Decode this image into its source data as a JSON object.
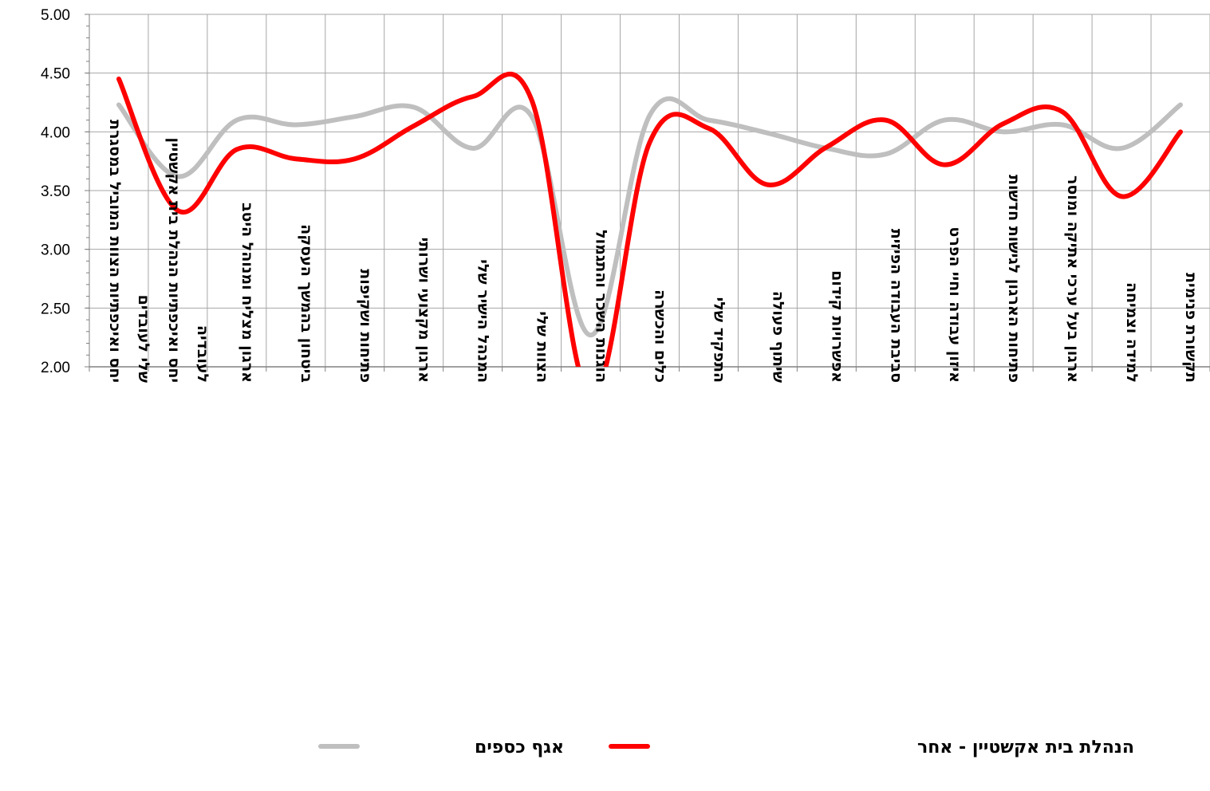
{
  "chart_data": {
    "type": "line",
    "title": "",
    "xlabel": "",
    "ylabel": "",
    "ylim": [
      2.0,
      5.0
    ],
    "yticks": [
      "2.00",
      "2.50",
      "3.00",
      "3.50",
      "4.00",
      "4.50",
      "5.00"
    ],
    "grid": true,
    "smooth": true,
    "legend_position": "bottom",
    "categories": [
      [
        "יחס ואיכפתיות הצוות המוביל במסגרת",
        "שלי לעובדים"
      ],
      [
        "יחס ואיכפתיות הנהלת בית אקשטיין",
        "לעובדיה"
      ],
      [
        "ארגון מצליח ומנוהל היטב"
      ],
      [
        "ביטחון בהמשך העסקה"
      ],
      [
        "פתיחות ושקיפות"
      ],
      [
        "ארגון מקצועי ושרותי"
      ],
      [
        "המנהל הישיר שלי"
      ],
      [
        "הצוות שלי"
      ],
      [
        "הוגנות השכר והתגמול"
      ],
      [
        "כלים והכשרה"
      ],
      [
        "התפקיד שלי"
      ],
      [
        "שיתוף פעולה"
      ],
      [
        "אפשרויות קידום"
      ],
      [
        "סביבת העבודה הפיזית"
      ],
      [
        "איזון עבודה וחיי הפרט"
      ],
      [
        "פתיחות הארגון לגישות חדשות"
      ],
      [
        "ארגון בעל ערכי אתיקה ומוסר"
      ],
      [
        "למידה וצמיחה"
      ],
      [
        "תקשורת פנימית"
      ]
    ],
    "series": [
      {
        "name": "אגף כספים",
        "color": "#bfbfbf",
        "values": [
          4.23,
          3.62,
          4.1,
          4.06,
          4.13,
          4.21,
          3.86,
          4.13,
          2.27,
          4.14,
          4.1,
          3.99,
          3.86,
          3.81,
          4.1,
          4.0,
          4.06,
          3.86,
          4.23
        ]
      },
      {
        "name": "הנהלת בית אקשטיין - אחר",
        "color": "#ff0000",
        "values": [
          4.45,
          3.33,
          3.85,
          3.77,
          3.77,
          4.05,
          4.3,
          4.27,
          1.75,
          3.91,
          4.03,
          3.55,
          3.87,
          4.1,
          3.72,
          4.07,
          4.17,
          3.45,
          4.0
        ]
      }
    ]
  }
}
